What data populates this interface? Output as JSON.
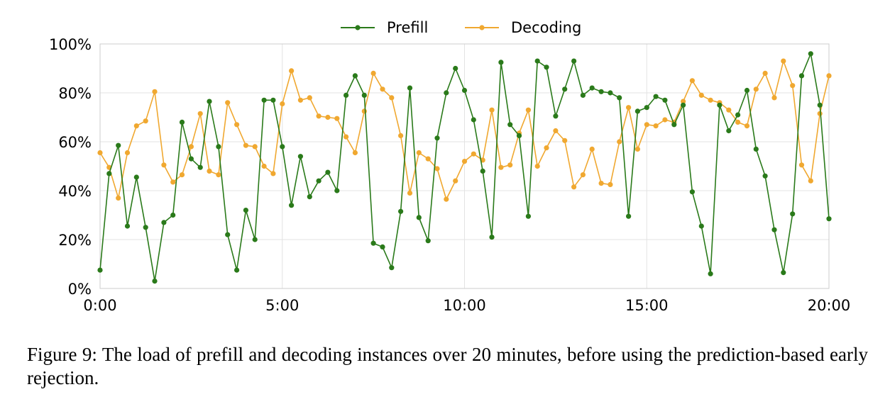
{
  "chart_data": {
    "type": "line",
    "xlabel": "",
    "ylabel": "",
    "x_tick_labels": [
      "0:00",
      "5:00",
      "10:00",
      "15:00",
      "20:00"
    ],
    "y_tick_labels": [
      "0%",
      "20%",
      "40%",
      "60%",
      "80%",
      "100%"
    ],
    "x_range_minutes": [
      0,
      20
    ],
    "ylim": [
      0,
      100
    ],
    "grid": true,
    "legend_position": "top-center",
    "x_minutes": [
      0,
      0.25,
      0.5,
      0.75,
      1,
      1.25,
      1.5,
      1.75,
      2,
      2.25,
      2.5,
      2.75,
      3,
      3.25,
      3.5,
      3.75,
      4,
      4.25,
      4.5,
      4.75,
      5,
      5.25,
      5.5,
      5.75,
      6,
      6.25,
      6.5,
      6.75,
      7,
      7.25,
      7.5,
      7.75,
      8,
      8.25,
      8.5,
      8.75,
      9,
      9.25,
      9.5,
      9.75,
      10,
      10.25,
      10.5,
      10.75,
      11,
      11.25,
      11.5,
      11.75,
      12,
      12.25,
      12.5,
      12.75,
      13,
      13.25,
      13.5,
      13.75,
      14,
      14.25,
      14.5,
      14.75,
      15,
      15.25,
      15.5,
      15.75,
      16,
      16.25,
      16.5,
      16.75,
      17,
      17.25,
      17.5,
      17.75,
      18,
      18.25,
      18.5,
      18.75,
      19,
      19.25,
      19.5,
      19.75,
      20
    ],
    "series": [
      {
        "name": "Prefill",
        "color": "#2a7a1a",
        "values": [
          7.5,
          47,
          58.5,
          25.5,
          45.5,
          25,
          3,
          27,
          30,
          68,
          53,
          49.5,
          76.5,
          58,
          22,
          7.5,
          32,
          20,
          77,
          77,
          58,
          34,
          54,
          37.5,
          44,
          47.5,
          40,
          79,
          87,
          79,
          18.5,
          17,
          8.5,
          31.5,
          82,
          29,
          19.5,
          61.5,
          80,
          90,
          81,
          69,
          48,
          21,
          92.5,
          67,
          62.5,
          29.5,
          93,
          90.5,
          70.5,
          81.5,
          93,
          79,
          82,
          80.5,
          80,
          78,
          29.5,
          72.5,
          74,
          78.5,
          77,
          67,
          75,
          39.5,
          25.5,
          6,
          75,
          64.5,
          71,
          81,
          57,
          46,
          24,
          6.5,
          30.5,
          87,
          96,
          75,
          28.5
        ]
      },
      {
        "name": "Decoding",
        "color": "#f0a830",
        "values": [
          55.5,
          49.5,
          37,
          55.5,
          66.5,
          68.5,
          80.5,
          50.5,
          43.5,
          46.5,
          58,
          71.5,
          48,
          46.5,
          76,
          67,
          58.5,
          58,
          50,
          47,
          75.5,
          89,
          77,
          78,
          70.5,
          70,
          69.5,
          62,
          55.5,
          72.5,
          88,
          81.5,
          78,
          62.5,
          39,
          55.5,
          53,
          49,
          36.5,
          44,
          52,
          55,
          52.5,
          73,
          49.5,
          50.5,
          63.5,
          73,
          50,
          57.5,
          64.5,
          60.5,
          41.5,
          46.5,
          57,
          43,
          42.5,
          60,
          74,
          57,
          67,
          66.5,
          69,
          68,
          76.5,
          85,
          79,
          77,
          76,
          73,
          68,
          66.5,
          81.5,
          88,
          78,
          93,
          83,
          50.5,
          44,
          71.5,
          87
        ]
      }
    ]
  },
  "caption": "Figure 9: The load of prefill and decoding instances over 20 minutes, before using the prediction-based early rejection."
}
